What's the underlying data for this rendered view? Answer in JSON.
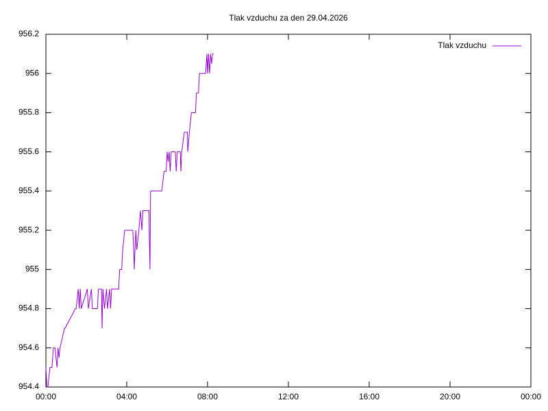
{
  "chart_data": {
    "type": "line",
    "title": "Tlak vzduchu za den 29.04.2026",
    "x": [
      0,
      0.05,
      0.1,
      0.2,
      0.3,
      0.37,
      0.45,
      0.55,
      0.6,
      0.65,
      0.7,
      0.92,
      0.95,
      1.46,
      1.5,
      1.6,
      1.65,
      1.7,
      1.75,
      2.05,
      2.1,
      2.25,
      2.3,
      2.55,
      2.6,
      2.75,
      2.78,
      2.82,
      2.9,
      3.0,
      3.05,
      3.15,
      3.2,
      3.25,
      3.6,
      3.65,
      3.75,
      3.8,
      3.9,
      4.3,
      4.35,
      4.37,
      4.45,
      4.5,
      4.6,
      4.68,
      4.75,
      4.8,
      5.1,
      5.12,
      5.15,
      5.18,
      5.73,
      5.85,
      5.95,
      6.0,
      6.05,
      6.1,
      6.15,
      6.2,
      6.4,
      6.45,
      6.5,
      6.65,
      6.68,
      6.72,
      6.85,
      7.0,
      7.02,
      7.1,
      7.2,
      7.4,
      7.45,
      7.55,
      7.6,
      7.7,
      7.9,
      7.97,
      8.0,
      8.05,
      8.1,
      8.15,
      8.2,
      8.25,
      8.3
    ],
    "series": [
      {
        "name": "Tlak vzduchu",
        "color": "#9400d3",
        "values": [
          954.5,
          954.4,
          954.4,
          954.5,
          954.5,
          954.6,
          954.6,
          954.5,
          954.6,
          954.55,
          954.6,
          954.7,
          954.7,
          954.8,
          954.8,
          954.9,
          954.8,
          954.9,
          954.8,
          954.9,
          954.8,
          954.9,
          954.8,
          954.8,
          954.9,
          954.9,
          954.7,
          954.9,
          954.8,
          954.9,
          954.8,
          954.9,
          954.8,
          954.9,
          954.9,
          955.0,
          955.0,
          955.1,
          955.2,
          955.2,
          955.1,
          955.0,
          955.2,
          955.1,
          955.2,
          955.3,
          955.2,
          955.3,
          955.3,
          955.15,
          955.0,
          955.4,
          955.4,
          955.5,
          955.5,
          955.6,
          955.55,
          955.6,
          955.5,
          955.6,
          955.6,
          955.5,
          955.6,
          955.6,
          955.5,
          955.6,
          955.7,
          955.7,
          955.6,
          955.7,
          955.8,
          955.8,
          955.9,
          955.9,
          956.0,
          956.0,
          956.0,
          956.1,
          956.0,
          956.1,
          956.0,
          956.1,
          956.05,
          956.1,
          956.1
        ]
      }
    ],
    "xlim": [
      0,
      24
    ],
    "xticks": [
      {
        "value": 0,
        "label": "00:00"
      },
      {
        "value": 4,
        "label": "04:00"
      },
      {
        "value": 8,
        "label": "08:00"
      },
      {
        "value": 12,
        "label": "12:00"
      },
      {
        "value": 16,
        "label": "16:00"
      },
      {
        "value": 20,
        "label": "20:00"
      },
      {
        "value": 24,
        "label": "00:00"
      }
    ],
    "ylim": [
      954.4,
      956.2
    ],
    "yticks": [
      954.4,
      954.6,
      954.8,
      955,
      955.2,
      955.4,
      955.6,
      955.8,
      956,
      956.2
    ],
    "legend": "top-right",
    "grid": false
  }
}
